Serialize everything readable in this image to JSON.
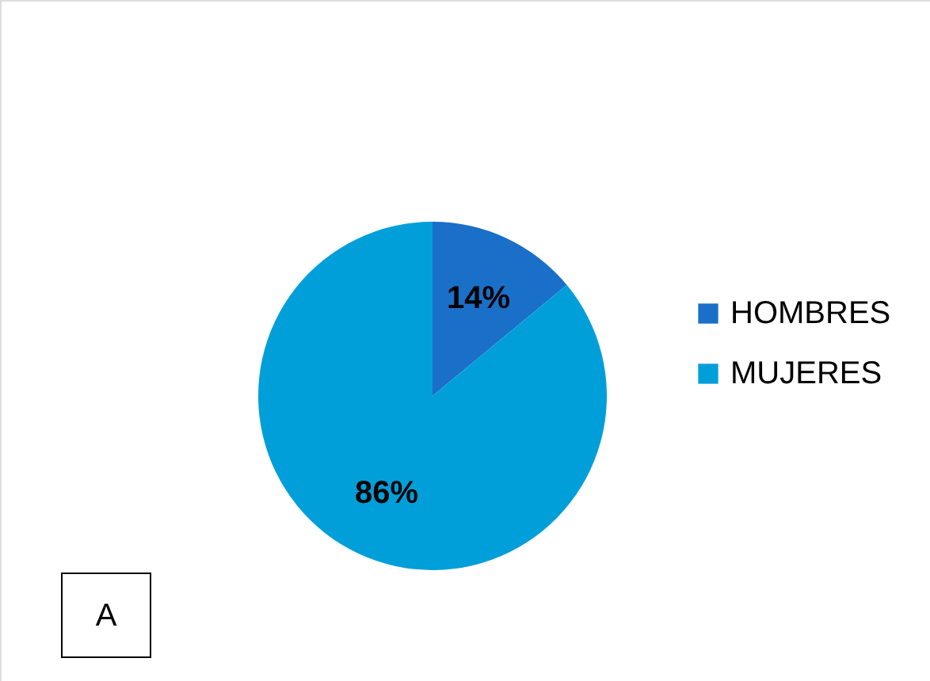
{
  "chart_data": {
    "type": "pie",
    "categories": [
      "HOMBRES",
      "MUJERES"
    ],
    "values": [
      14,
      86
    ],
    "colors": [
      "#1a6fc9",
      "#009fd9"
    ],
    "value_labels": [
      "14%",
      "86%"
    ],
    "legend": "right",
    "annotations": [
      "A"
    ]
  }
}
